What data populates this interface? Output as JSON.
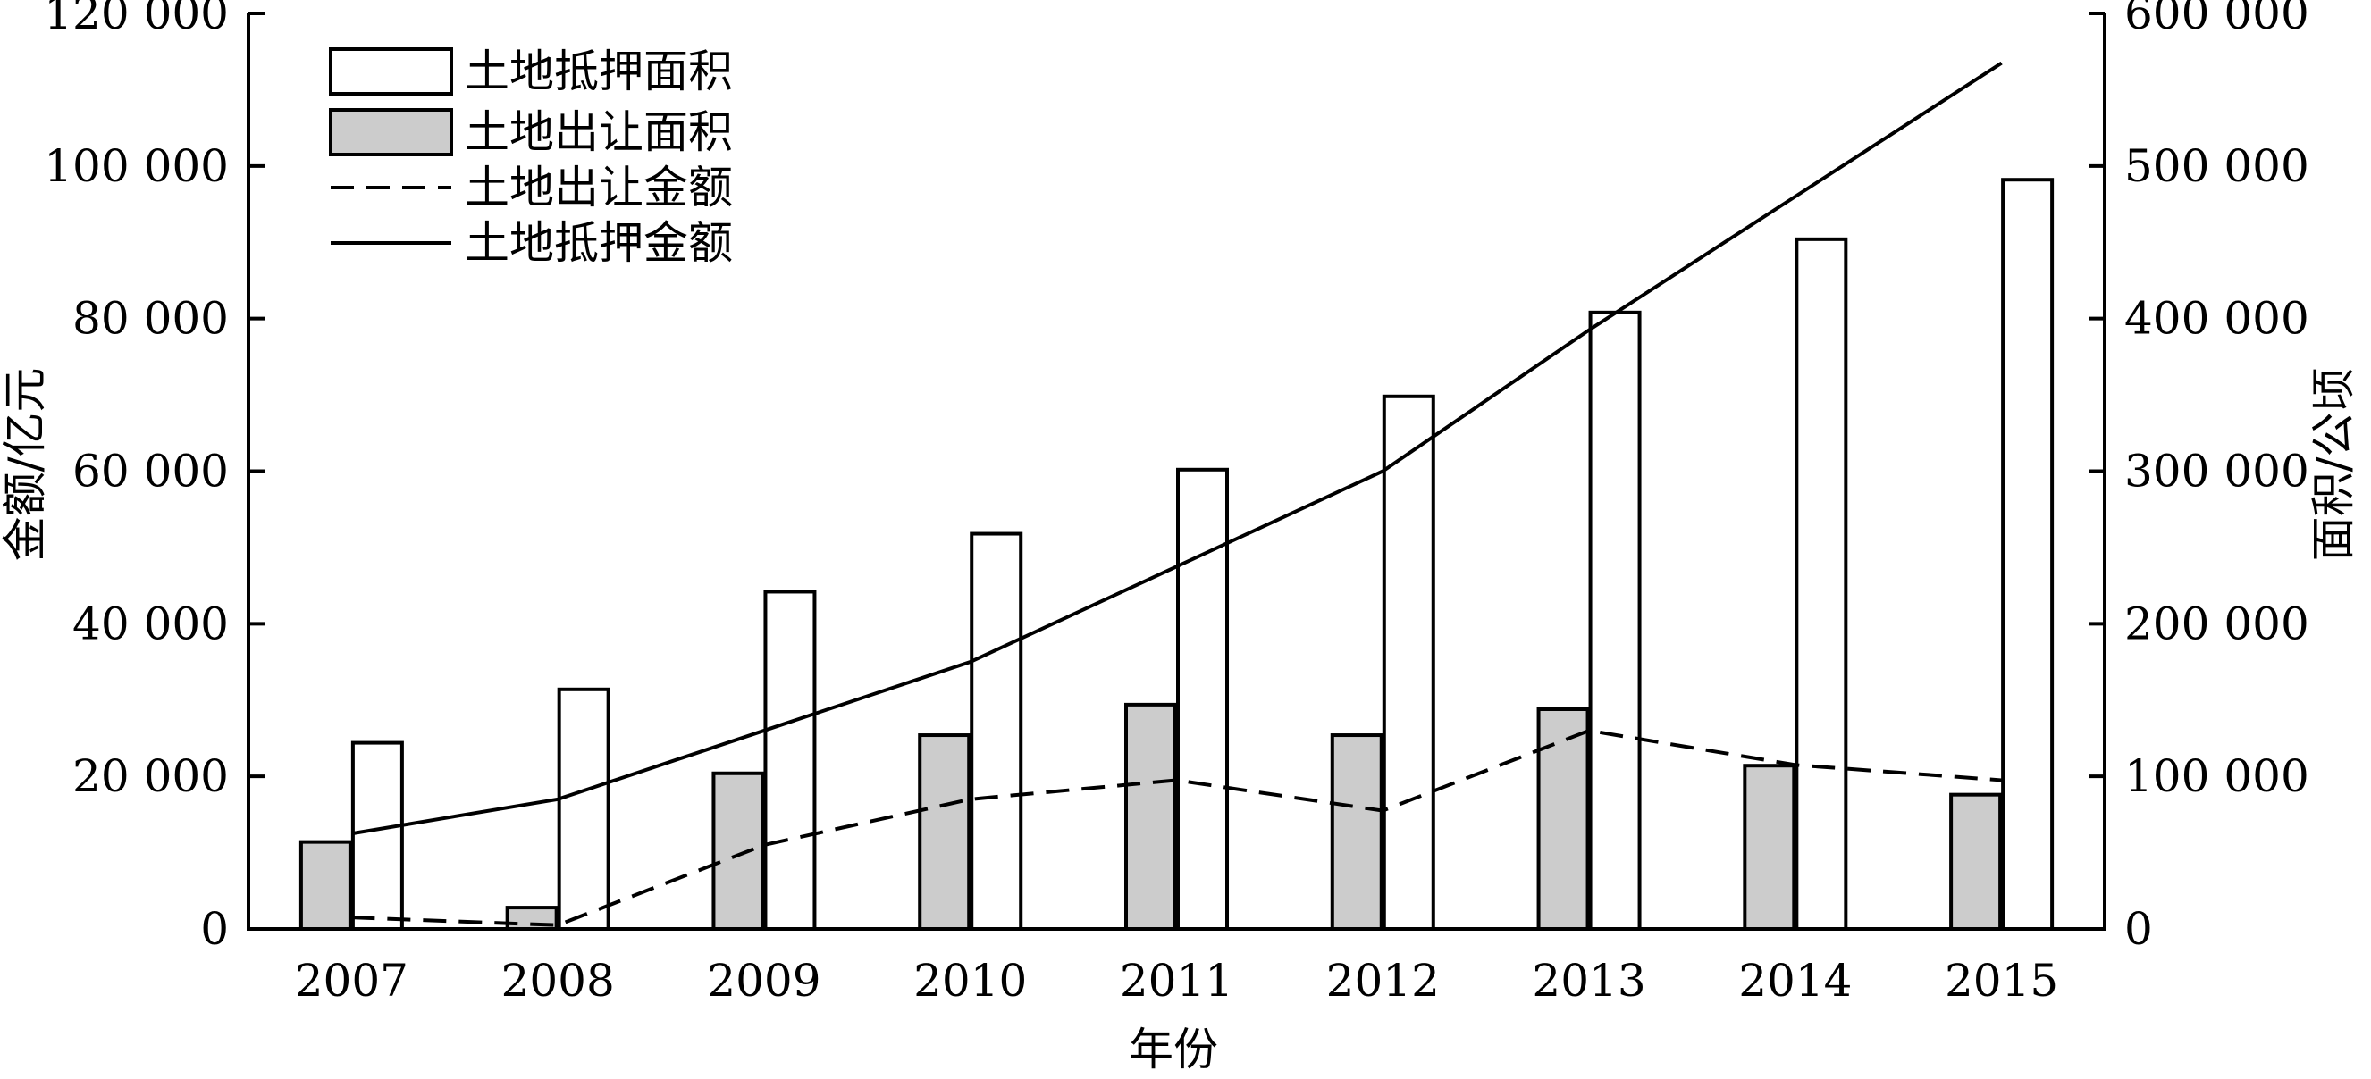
{
  "chart_data": {
    "type": "bar",
    "title": "",
    "xlabel": "年份",
    "ylabel_left": "金额/亿元",
    "ylabel_right": "面积/公顷",
    "categories": [
      "2007",
      "2008",
      "2009",
      "2010",
      "2011",
      "2012",
      "2013",
      "2014",
      "2015"
    ],
    "ylim_left": [
      0,
      120000
    ],
    "ylim_right": [
      0,
      600000
    ],
    "yticks_left": [
      "0",
      "20 000",
      "40 000",
      "60 000",
      "80 000",
      "100 000",
      "120 000"
    ],
    "yticks_right": [
      "0",
      "100 000",
      "200 000",
      "300 000",
      "400 000",
      "500 000",
      "600 000"
    ],
    "grid": false,
    "legend_position": "top-left",
    "series": [
      {
        "name": "土地抵押面积",
        "type": "bar",
        "axis": "right",
        "fill": "#ffffff",
        "values": [
          122000,
          157000,
          221000,
          259000,
          301000,
          349000,
          404000,
          452000,
          491000
        ]
      },
      {
        "name": "土地出让面积",
        "type": "bar",
        "axis": "right",
        "fill": "#cccccc",
        "values": [
          57000,
          14000,
          102000,
          127000,
          147000,
          127000,
          144000,
          107000,
          88000
        ]
      },
      {
        "name": "土地出让金额",
        "type": "line",
        "style": "dashed",
        "axis": "left",
        "values": [
          1500,
          500,
          11000,
          17000,
          19500,
          15500,
          26000,
          21500,
          19500
        ]
      },
      {
        "name": "土地抵押金额",
        "type": "line",
        "style": "solid",
        "axis": "left",
        "values": [
          12500,
          17000,
          26000,
          35000,
          47500,
          60000,
          78500,
          96000,
          113500
        ]
      }
    ]
  }
}
